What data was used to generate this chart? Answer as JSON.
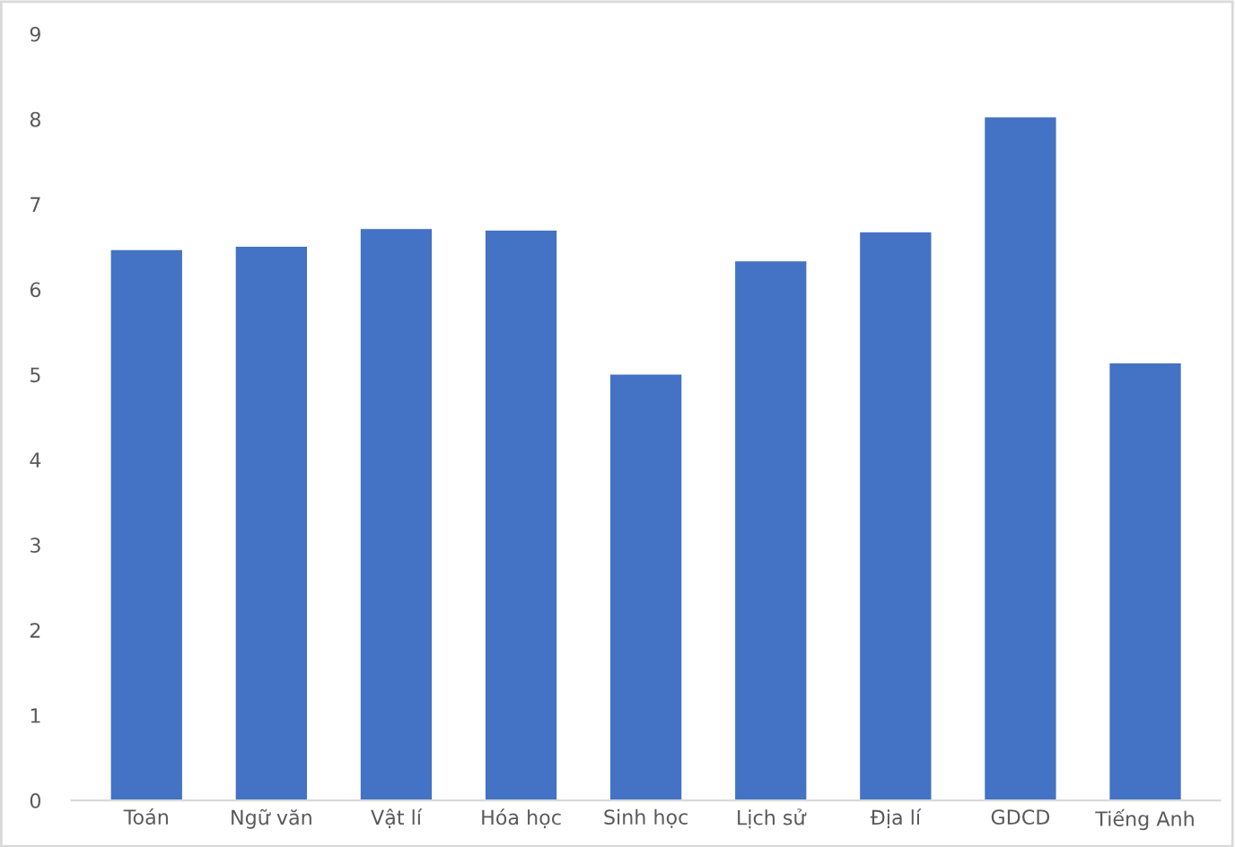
{
  "chart_data": {
    "type": "bar",
    "categories": [
      "Toán",
      "Ngữ văn",
      "Vật lí",
      "Hóa học",
      "Sinh học",
      "Lịch sử",
      "Địa lí",
      "GDCD",
      "Tiếng Anh"
    ],
    "values": [
      6.46,
      6.5,
      6.71,
      6.69,
      5.0,
      6.33,
      6.67,
      8.02,
      5.13
    ],
    "color": "#4472c4",
    "ylim": [
      0,
      9
    ],
    "yticks": [
      0,
      1,
      2,
      3,
      4,
      5,
      6,
      7,
      8,
      9
    ],
    "grid": false,
    "legend": false
  }
}
